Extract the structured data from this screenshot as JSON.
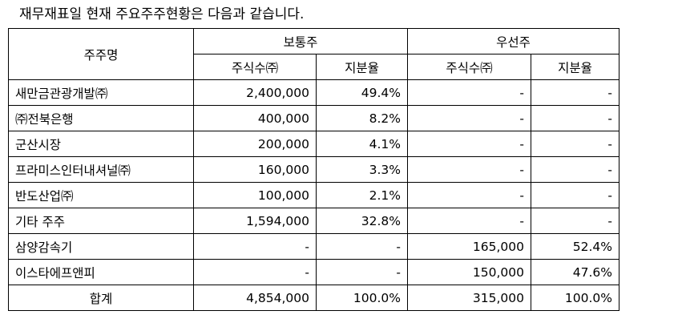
{
  "caption": "재무재표일 현재 주요주주현황은 다음과 같습니다.",
  "table": {
    "col_holder": "주주명",
    "group_common": "보통주",
    "group_preferred": "우선주",
    "sub_common_shares": "주식수㈜",
    "sub_common_ratio": "지분율",
    "sub_pref_shares": "주식수㈜",
    "sub_pref_ratio": "지분율",
    "rows": [
      {
        "name": "새만금관광개발㈜",
        "common_shares": "2,400,000",
        "common_ratio": "49.4%",
        "pref_shares": "-",
        "pref_ratio": "-"
      },
      {
        "name": "㈜전북은행",
        "common_shares": "400,000",
        "common_ratio": "8.2%",
        "pref_shares": "-",
        "pref_ratio": "-"
      },
      {
        "name": "군산시장",
        "common_shares": "200,000",
        "common_ratio": "4.1%",
        "pref_shares": "-",
        "pref_ratio": "-"
      },
      {
        "name": "프라미스인터내셔널㈜",
        "common_shares": "160,000",
        "common_ratio": "3.3%",
        "pref_shares": "-",
        "pref_ratio": "-"
      },
      {
        "name": "반도산업㈜",
        "common_shares": "100,000",
        "common_ratio": "2.1%",
        "pref_shares": "-",
        "pref_ratio": "-"
      },
      {
        "name": "기타 주주",
        "common_shares": "1,594,000",
        "common_ratio": "32.8%",
        "pref_shares": "-",
        "pref_ratio": "-"
      },
      {
        "name": "삼양감속기",
        "common_shares": "-",
        "common_ratio": "-",
        "pref_shares": "165,000",
        "pref_ratio": "52.4%"
      },
      {
        "name": "이스타에프앤피",
        "common_shares": "-",
        "common_ratio": "-",
        "pref_shares": "150,000",
        "pref_ratio": "47.6%"
      }
    ],
    "total": {
      "name": "합계",
      "common_shares": "4,854,000",
      "common_ratio": "100.0%",
      "pref_shares": "315,000",
      "pref_ratio": "100.0%"
    }
  }
}
